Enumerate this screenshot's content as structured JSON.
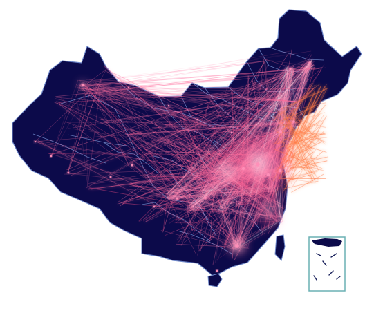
{
  "map": {
    "theme": {
      "background": "#ffffff",
      "land": "#0c0a4a",
      "border": "#6d86c8",
      "flow_warm": "#ff6f9f",
      "flow_hot": "#ff4f86",
      "flow_orange": "#ff7a45",
      "glow": "#fff0f6"
    },
    "regions": [
      "mainland",
      "hainan",
      "taiwan",
      "south-china-sea-inset"
    ],
    "visual": {
      "type": "flow-map",
      "density": "east-heavy",
      "inset": true
    }
  }
}
